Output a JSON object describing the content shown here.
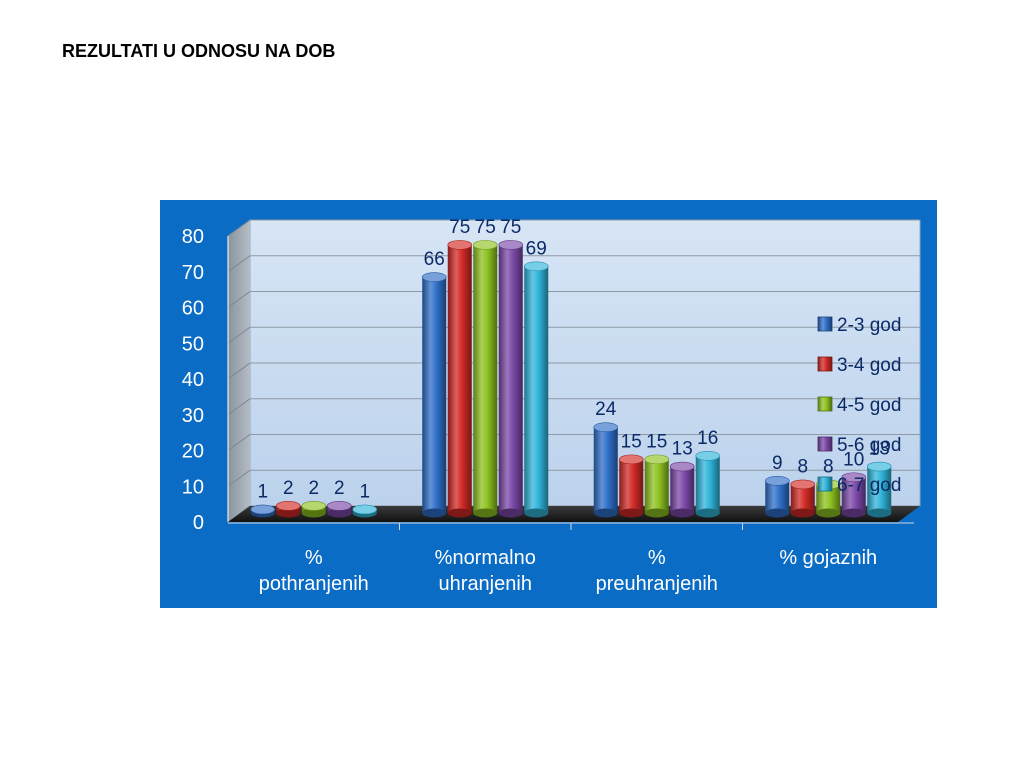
{
  "page": {
    "title": "REZULTATI U ODNOSU NA DOB"
  },
  "chart_data": {
    "type": "bar",
    "title": "",
    "xlabel": "",
    "ylabel": "",
    "ylim": [
      0,
      80
    ],
    "yticks": [
      0,
      10,
      20,
      30,
      40,
      50,
      60,
      70,
      80
    ],
    "grid": true,
    "legend_position": "right",
    "categories": [
      [
        "%",
        "pothranjenih"
      ],
      [
        "%normalno",
        "uhranjenih"
      ],
      [
        "%",
        "preuhranjenih"
      ],
      [
        "% gojaznih"
      ]
    ],
    "series": [
      {
        "name": "2-3 god",
        "values": [
          1,
          66,
          24,
          9
        ],
        "color": "#2f6fc9"
      },
      {
        "name": "3-4 god",
        "values": [
          2,
          75,
          15,
          8
        ],
        "color": "#d22a26"
      },
      {
        "name": "4-5 god",
        "values": [
          2,
          75,
          15,
          8
        ],
        "color": "#8dc21f"
      },
      {
        "name": "5-6 god",
        "values": [
          2,
          75,
          13,
          10
        ],
        "color": "#7b48a8"
      },
      {
        "name": "6-7 god",
        "values": [
          1,
          69,
          16,
          13
        ],
        "color": "#2fb4d9"
      }
    ],
    "colors": {
      "frame": "#0a6cc4",
      "plot_area": "#c9dbf0",
      "side_wall": "#9aa3ad",
      "floor": "#2a2a2a",
      "text": "#0b2a66"
    }
  }
}
